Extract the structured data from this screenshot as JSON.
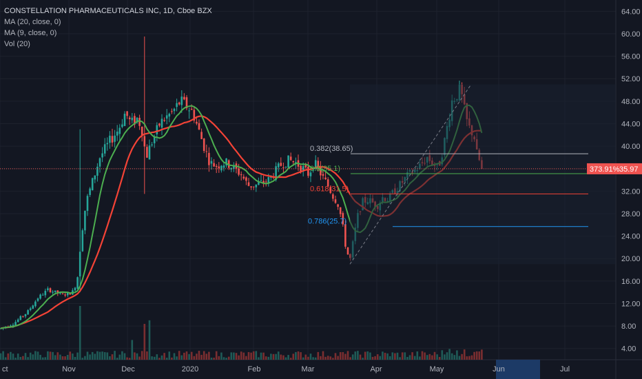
{
  "legend": {
    "title": "CONSTELLATION PHARMACEUTICALS INC, 1D, Cboe BZX",
    "ma20": "MA (20, close, 0)",
    "ma9": "MA (9, close, 0)",
    "vol": "Vol (20)"
  },
  "price_axis": {
    "labels": [
      "64.00",
      "60.00",
      "56.00",
      "52.00",
      "48.00",
      "44.00",
      "40.00",
      "36.00",
      "32.00",
      "28.00",
      "24.00",
      "20.00",
      "16.00",
      "12.00",
      "8.00",
      "4.00"
    ],
    "current_price": "35.97",
    "change_pct": "373.91%"
  },
  "time_axis": {
    "labels": [
      "ct",
      "Nov",
      "Dec",
      "2020",
      "Feb",
      "Mar",
      "Apr",
      "May",
      "Jun",
      "Jul"
    ],
    "highlighted": "Jun"
  },
  "fib_levels": [
    {
      "label": "0.382(38.65)",
      "color": "#b2b5be"
    },
    {
      "label": "0.5(35.1)",
      "color": "#4caf50"
    },
    {
      "label": "0.618(31.5)",
      "color": "#f44336"
    },
    {
      "label": "0.786(25.7)",
      "color": "#2196f3"
    }
  ],
  "colors": {
    "background": "#131722",
    "up": "#26a69a",
    "down": "#ef5350",
    "ma9": "#4caf50",
    "ma20": "#f44336",
    "grid": "#1e222d"
  },
  "chart_data": {
    "type": "candlestick",
    "ylim": [
      2,
      66
    ],
    "x_ticks": [
      "ct",
      "Nov",
      "Dec",
      "2020",
      "Feb",
      "Mar",
      "Apr",
      "May",
      "Jun",
      "Jul"
    ],
    "price_path_knots": [
      [
        0,
        7.5
      ],
      [
        20,
        8.5
      ],
      [
        40,
        10.5
      ],
      [
        55,
        13
      ],
      [
        70,
        14.5
      ],
      [
        90,
        13.5
      ],
      [
        105,
        14
      ],
      [
        112,
        16
      ],
      [
        118,
        24
      ],
      [
        125,
        30
      ],
      [
        135,
        34
      ],
      [
        145,
        38
      ],
      [
        160,
        41
      ],
      [
        172,
        43
      ],
      [
        182,
        46
      ],
      [
        190,
        44
      ],
      [
        200,
        45
      ],
      [
        206,
        43
      ],
      [
        212,
        38
      ],
      [
        218,
        40
      ],
      [
        225,
        42
      ],
      [
        232,
        44
      ],
      [
        240,
        45
      ],
      [
        250,
        46
      ],
      [
        262,
        48
      ],
      [
        272,
        47
      ],
      [
        280,
        46
      ],
      [
        288,
        43
      ],
      [
        296,
        40
      ],
      [
        305,
        37
      ],
      [
        315,
        36.5
      ],
      [
        322,
        37
      ],
      [
        330,
        37
      ],
      [
        340,
        36
      ],
      [
        350,
        35
      ],
      [
        360,
        33
      ],
      [
        370,
        33
      ],
      [
        380,
        33.5
      ],
      [
        390,
        34
      ],
      [
        400,
        35.5
      ],
      [
        410,
        37
      ],
      [
        420,
        37.5
      ],
      [
        430,
        37
      ],
      [
        440,
        36
      ],
      [
        448,
        35
      ],
      [
        456,
        37
      ],
      [
        462,
        36
      ],
      [
        468,
        34.5
      ],
      [
        476,
        33
      ],
      [
        484,
        31
      ],
      [
        490,
        30
      ],
      [
        496,
        27
      ],
      [
        502,
        22
      ],
      [
        508,
        19.5
      ],
      [
        514,
        24
      ],
      [
        520,
        28
      ],
      [
        526,
        30
      ],
      [
        534,
        30.5
      ],
      [
        540,
        30
      ],
      [
        548,
        29.5
      ],
      [
        556,
        31
      ],
      [
        564,
        30.5
      ],
      [
        572,
        32
      ],
      [
        580,
        33
      ],
      [
        590,
        34.5
      ],
      [
        600,
        35.5
      ],
      [
        610,
        36.5
      ],
      [
        620,
        38
      ],
      [
        628,
        37
      ],
      [
        636,
        36
      ],
      [
        644,
        40
      ],
      [
        650,
        44
      ],
      [
        656,
        48
      ],
      [
        662,
        49
      ],
      [
        668,
        50
      ],
      [
        672,
        48
      ],
      [
        676,
        45
      ],
      [
        682,
        43
      ],
      [
        688,
        42
      ],
      [
        693,
        38
      ],
      [
        698,
        37
      ],
      [
        702,
        36
      ]
    ],
    "spikes": [
      {
        "x": 209,
        "high": 59.5,
        "low": 31.5
      },
      {
        "x": 117,
        "high": 43,
        "low": 14
      }
    ],
    "ma20_last": 41.5,
    "ma9_last": 42.5,
    "last_close": 35.97,
    "fibonacci": [
      {
        "level": 0.382,
        "price": 38.65
      },
      {
        "level": 0.5,
        "price": 35.1
      },
      {
        "level": 0.618,
        "price": 31.5
      },
      {
        "level": 0.786,
        "price": 25.7
      }
    ],
    "fib_trend": {
      "from": [
        508,
        19
      ],
      "to": [
        684,
        51
      ]
    },
    "volume_spikes": [
      {
        "x": 117,
        "value": 30
      },
      {
        "x": 209,
        "value": 20
      },
      {
        "x": 217,
        "value": 22
      },
      {
        "x": 191,
        "value": 11
      },
      {
        "x": 653,
        "value": 6
      }
    ]
  }
}
